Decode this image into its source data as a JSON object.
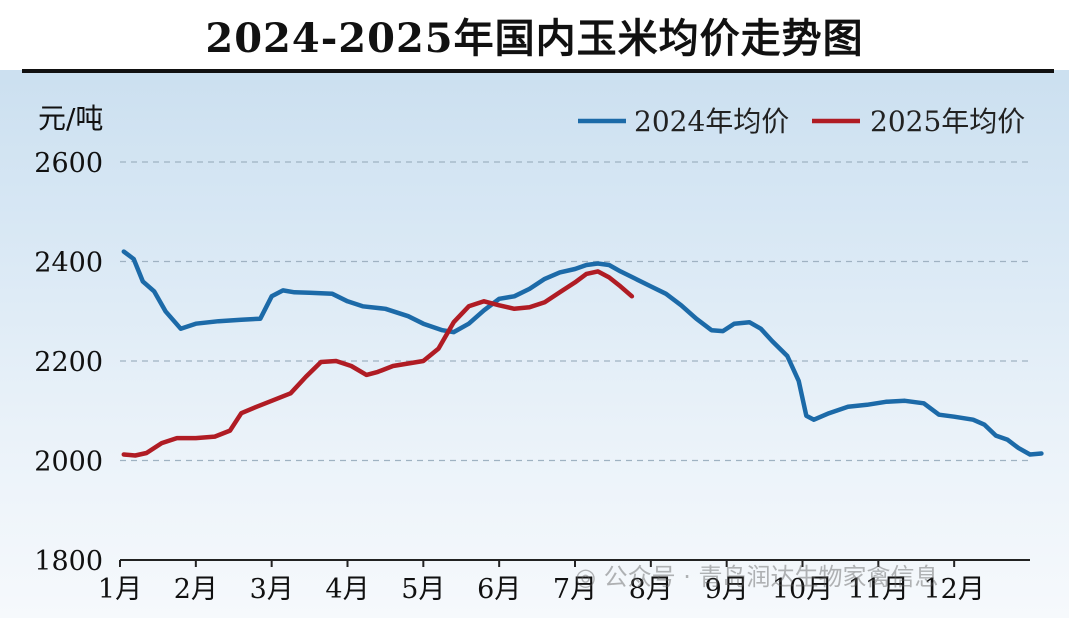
{
  "chart_data": {
    "type": "line",
    "title": "2024-2025年国内玉米均价走势图",
    "ylabel": "元/吨",
    "xlabel": "",
    "ylim": [
      1800,
      2600
    ],
    "yticks": [
      1800,
      2000,
      2200,
      2400,
      2600
    ],
    "xlim": [
      1,
      13
    ],
    "categories": [
      "1月",
      "2月",
      "3月",
      "4月",
      "5月",
      "6月",
      "7月",
      "8月",
      "9月",
      "10月",
      "11月",
      "12月"
    ],
    "grid": "horizontal-dashed",
    "legend_position": "top-right",
    "series": [
      {
        "name": "2024年均价",
        "color": "#1c6aa8",
        "points": [
          [
            1.05,
            2420
          ],
          [
            1.18,
            2405
          ],
          [
            1.3,
            2360
          ],
          [
            1.45,
            2340
          ],
          [
            1.6,
            2300
          ],
          [
            1.8,
            2265
          ],
          [
            2.0,
            2275
          ],
          [
            2.3,
            2280
          ],
          [
            2.6,
            2283
          ],
          [
            2.85,
            2285
          ],
          [
            3.0,
            2330
          ],
          [
            3.15,
            2342
          ],
          [
            3.3,
            2338
          ],
          [
            3.5,
            2337
          ],
          [
            3.8,
            2335
          ],
          [
            4.0,
            2320
          ],
          [
            4.2,
            2310
          ],
          [
            4.5,
            2305
          ],
          [
            4.8,
            2290
          ],
          [
            5.0,
            2275
          ],
          [
            5.25,
            2262
          ],
          [
            5.4,
            2258
          ],
          [
            5.6,
            2275
          ],
          [
            5.8,
            2302
          ],
          [
            6.0,
            2325
          ],
          [
            6.2,
            2330
          ],
          [
            6.4,
            2345
          ],
          [
            6.6,
            2365
          ],
          [
            6.8,
            2378
          ],
          [
            7.0,
            2385
          ],
          [
            7.15,
            2393
          ],
          [
            7.3,
            2396
          ],
          [
            7.45,
            2393
          ],
          [
            7.6,
            2380
          ],
          [
            7.8,
            2365
          ],
          [
            8.0,
            2350
          ],
          [
            8.2,
            2335
          ],
          [
            8.4,
            2312
          ],
          [
            8.6,
            2285
          ],
          [
            8.8,
            2262
          ],
          [
            8.95,
            2260
          ],
          [
            9.1,
            2275
          ],
          [
            9.3,
            2278
          ],
          [
            9.45,
            2265
          ],
          [
            9.6,
            2240
          ],
          [
            9.8,
            2210
          ],
          [
            9.95,
            2160
          ],
          [
            10.05,
            2090
          ],
          [
            10.15,
            2082
          ],
          [
            10.35,
            2095
          ],
          [
            10.6,
            2108
          ],
          [
            10.85,
            2112
          ],
          [
            11.1,
            2118
          ],
          [
            11.35,
            2120
          ],
          [
            11.6,
            2115
          ],
          [
            11.8,
            2092
          ],
          [
            12.0,
            2088
          ],
          [
            12.25,
            2082
          ],
          [
            12.4,
            2072
          ],
          [
            12.55,
            2050
          ],
          [
            12.7,
            2042
          ],
          [
            12.85,
            2025
          ],
          [
            13.0,
            2012
          ],
          [
            13.15,
            2014
          ]
        ]
      },
      {
        "name": "2025年均价",
        "color": "#b01c24",
        "points": [
          [
            1.05,
            2012
          ],
          [
            1.2,
            2010
          ],
          [
            1.35,
            2015
          ],
          [
            1.55,
            2035
          ],
          [
            1.75,
            2045
          ],
          [
            2.0,
            2045
          ],
          [
            2.25,
            2048
          ],
          [
            2.45,
            2060
          ],
          [
            2.6,
            2095
          ],
          [
            2.8,
            2108
          ],
          [
            3.0,
            2120
          ],
          [
            3.25,
            2135
          ],
          [
            3.45,
            2168
          ],
          [
            3.65,
            2198
          ],
          [
            3.85,
            2200
          ],
          [
            4.05,
            2190
          ],
          [
            4.25,
            2172
          ],
          [
            4.4,
            2178
          ],
          [
            4.6,
            2190
          ],
          [
            4.8,
            2195
          ],
          [
            5.0,
            2200
          ],
          [
            5.2,
            2225
          ],
          [
            5.4,
            2278
          ],
          [
            5.6,
            2310
          ],
          [
            5.8,
            2320
          ],
          [
            6.0,
            2312
          ],
          [
            6.2,
            2305
          ],
          [
            6.4,
            2308
          ],
          [
            6.6,
            2318
          ],
          [
            6.8,
            2338
          ],
          [
            7.0,
            2358
          ],
          [
            7.15,
            2375
          ],
          [
            7.3,
            2380
          ],
          [
            7.45,
            2368
          ],
          [
            7.6,
            2350
          ],
          [
            7.75,
            2330
          ]
        ]
      }
    ],
    "watermark": "公众号 · 青岛润达生物家禽信息"
  }
}
